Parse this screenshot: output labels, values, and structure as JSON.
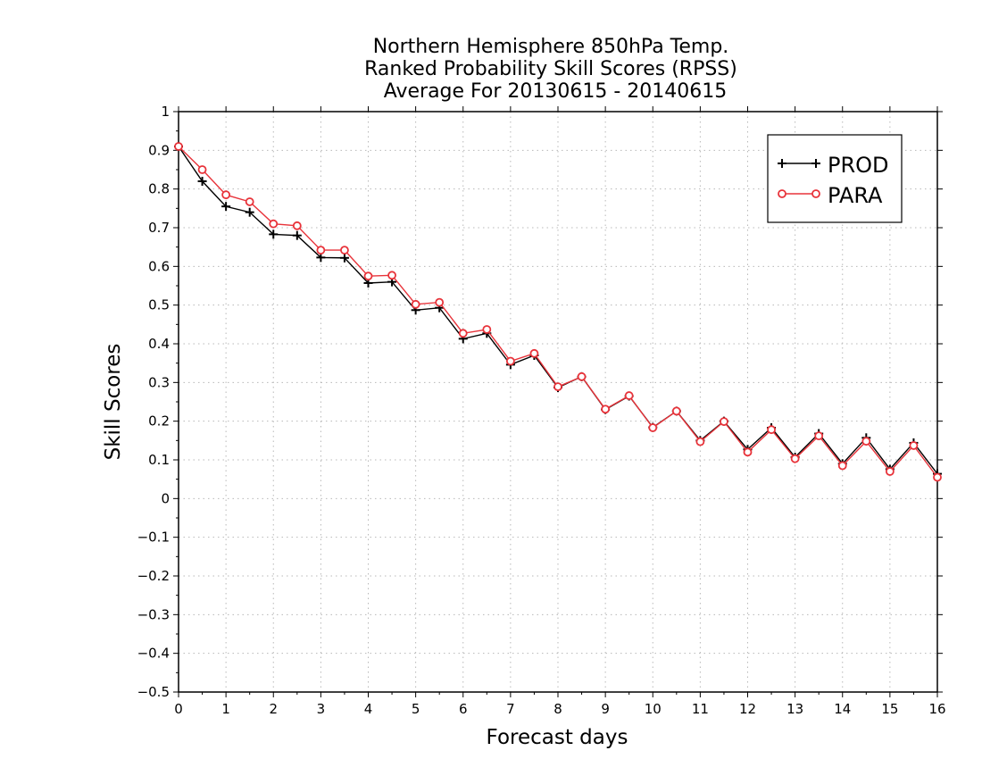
{
  "chart_data": {
    "type": "line",
    "title": [
      "Northern Hemisphere 850hPa Temp.",
      "Ranked Probability Skill Scores (RPSS)",
      "Average For 20130615 - 20140615"
    ],
    "xlabel": "Forecast days",
    "ylabel": "Skill Scores",
    "xlim": [
      0,
      16
    ],
    "ylim": [
      -0.5,
      1
    ],
    "xticks": [
      0,
      1,
      2,
      3,
      4,
      5,
      6,
      7,
      8,
      9,
      10,
      11,
      12,
      13,
      14,
      15,
      16
    ],
    "xtick_labels": [
      "0",
      "1",
      "2",
      "3",
      "4",
      "5",
      "6",
      "7",
      "8",
      "9",
      "10",
      "11",
      "12",
      "13",
      "14",
      "15",
      "16"
    ],
    "yticks": [
      -0.5,
      -0.4,
      -0.3,
      -0.2,
      -0.1,
      0,
      0.1,
      0.2,
      0.3,
      0.4,
      0.5,
      0.6,
      0.7,
      0.8,
      0.9,
      1
    ],
    "ytick_labels": [
      "−0.5",
      "−0.4",
      "−0.3",
      "−0.2",
      "−0.1",
      "0",
      "0.1",
      "0.2",
      "0.3",
      "0.4",
      "0.5",
      "0.6",
      "0.7",
      "0.8",
      "0.9",
      "1"
    ],
    "grid": true,
    "legend_position": "top-right",
    "x": [
      0,
      0.5,
      1,
      1.5,
      2,
      2.5,
      3,
      3.5,
      4,
      4.5,
      5,
      5.5,
      6,
      6.5,
      7,
      7.5,
      8,
      8.5,
      9,
      9.5,
      10,
      10.5,
      11,
      11.5,
      12,
      12.5,
      13,
      13.5,
      14,
      14.5,
      15,
      15.5,
      16
    ],
    "series": [
      {
        "name": "PROD",
        "color": "#000000",
        "marker": "plus",
        "values": [
          0.91,
          0.82,
          0.755,
          0.74,
          0.683,
          0.68,
          0.623,
          0.622,
          0.557,
          0.56,
          0.487,
          0.493,
          0.413,
          0.427,
          0.346,
          0.37,
          0.287,
          0.315,
          0.23,
          0.265,
          0.184,
          0.226,
          0.15,
          0.2,
          0.127,
          0.183,
          0.107,
          0.168,
          0.09,
          0.157,
          0.076,
          0.144,
          0.064
        ]
      },
      {
        "name": "PARA",
        "color": "#e8333a",
        "marker": "circle",
        "values": [
          0.91,
          0.85,
          0.785,
          0.767,
          0.71,
          0.705,
          0.642,
          0.642,
          0.575,
          0.577,
          0.502,
          0.507,
          0.427,
          0.437,
          0.355,
          0.375,
          0.289,
          0.315,
          0.231,
          0.266,
          0.183,
          0.226,
          0.147,
          0.199,
          0.12,
          0.178,
          0.103,
          0.162,
          0.085,
          0.148,
          0.07,
          0.137,
          0.055
        ]
      }
    ]
  }
}
